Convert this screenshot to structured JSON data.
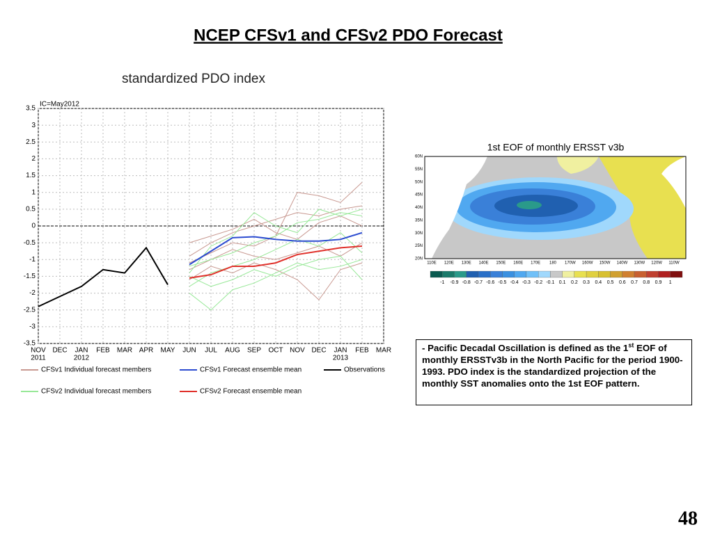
{
  "slide": {
    "title": "NCEP CFSv1 and CFSv2 PDO Forecast",
    "page_number": "48",
    "note": [
      "- ",
      "Pacific Decadal Oscillation is defined as the 1",
      "st",
      " EOF of monthly ERSSTv3b in the North Pacific for the period 1900-1993. PDO index is the standardized projection of the monthly SST anomalies onto  the 1st EOF pattern."
    ]
  },
  "chart_data": {
    "type": "line",
    "title": "standardized PDO index",
    "annotation": "IC=May2012",
    "categories": [
      "NOV",
      "DEC",
      "JAN",
      "FEB",
      "MAR",
      "APR",
      "MAY",
      "JUN",
      "JUL",
      "AUG",
      "SEP",
      "OCT",
      "NOV",
      "DEC",
      "JAN",
      "FEB",
      "MAR"
    ],
    "year_labels": [
      "2011",
      null,
      "2012",
      null,
      null,
      null,
      null,
      null,
      null,
      null,
      null,
      null,
      null,
      null,
      "2013",
      null,
      null
    ],
    "ylim": [
      -3.5,
      3.5
    ],
    "yticks": [
      -3.5,
      -3,
      -2.5,
      -2,
      -1.5,
      -1,
      -0.5,
      0,
      0.5,
      1,
      1.5,
      2,
      2.5,
      3,
      3.5
    ],
    "grid": true,
    "reference_line": 0,
    "series": [
      {
        "name": "CFSv1 Individual forecast members",
        "color": "#c89890",
        "members": [
          [
            null,
            null,
            null,
            null,
            null,
            null,
            null,
            -0.9,
            -0.5,
            -0.2,
            0,
            0.2,
            0.4,
            0.3,
            0.5,
            0.6,
            null
          ],
          [
            null,
            null,
            null,
            null,
            null,
            null,
            null,
            -1.1,
            -0.8,
            -0.5,
            -0.6,
            -0.3,
            1.0,
            0.9,
            0.7,
            1.3,
            null
          ],
          [
            null,
            null,
            null,
            null,
            null,
            null,
            null,
            -1.3,
            -1.0,
            -0.7,
            -0.9,
            -1.0,
            -0.8,
            -0.6,
            -0.9,
            -0.5,
            null
          ],
          [
            null,
            null,
            null,
            null,
            null,
            null,
            null,
            -0.5,
            -0.3,
            -0.1,
            0.2,
            -0.2,
            -0.4,
            0.1,
            0.3,
            0.0,
            null
          ],
          [
            null,
            null,
            null,
            null,
            null,
            null,
            null,
            -1.6,
            -1.2,
            -1.4,
            -1.1,
            -1.3,
            -1.6,
            -2.2,
            -1.3,
            -1.1,
            null
          ]
        ]
      },
      {
        "name": "CFSv1 Forecast ensemble mean",
        "color": "#2b4bd0",
        "values": [
          null,
          null,
          null,
          null,
          null,
          null,
          null,
          -1.15,
          -0.75,
          -0.35,
          -0.32,
          -0.4,
          -0.45,
          -0.45,
          -0.4,
          -0.2,
          null
        ]
      },
      {
        "name": "Observations",
        "color": "#000000",
        "values": [
          -2.4,
          -2.1,
          -1.8,
          -1.3,
          -1.4,
          -0.65,
          -1.75,
          null,
          null,
          null,
          null,
          null,
          null,
          null,
          null,
          null,
          null
        ]
      },
      {
        "name": "CFSv2 Individual forecast members",
        "color": "#98e898",
        "members": [
          [
            null,
            null,
            null,
            null,
            null,
            null,
            null,
            -1.5,
            -1.8,
            -1.6,
            -1.3,
            -1.5,
            -1.2,
            -1.0,
            -0.9,
            -1.6,
            null
          ],
          [
            null,
            null,
            null,
            null,
            null,
            null,
            null,
            -2.0,
            -2.5,
            -1.9,
            -1.7,
            -1.4,
            -1.1,
            -1.3,
            -1.2,
            -1.0,
            null
          ],
          [
            null,
            null,
            null,
            null,
            null,
            null,
            null,
            -1.2,
            -1.0,
            -0.8,
            -0.5,
            -0.3,
            0.1,
            0.2,
            0.4,
            0.3,
            null
          ],
          [
            null,
            null,
            null,
            null,
            null,
            null,
            null,
            -1.8,
            -1.4,
            -1.2,
            -1.0,
            -0.7,
            -0.4,
            -0.6,
            -0.2,
            -0.8,
            null
          ],
          [
            null,
            null,
            null,
            null,
            null,
            null,
            null,
            -1.4,
            -0.6,
            -0.3,
            0.4,
            0.0,
            -0.2,
            0.5,
            0.3,
            0.5,
            null
          ]
        ]
      },
      {
        "name": "CFSv2 Forecast ensemble mean",
        "color": "#e0302a",
        "values": [
          null,
          null,
          null,
          null,
          null,
          null,
          null,
          -1.55,
          -1.45,
          -1.2,
          -1.2,
          -1.1,
          -0.85,
          -0.75,
          -0.65,
          -0.6,
          null
        ]
      }
    ]
  },
  "map": {
    "title": "1st EOF of monthly ERSST v3b",
    "lat_labels": [
      "60N",
      "55N",
      "50N",
      "45N",
      "40N",
      "35N",
      "30N",
      "25N",
      "20N"
    ],
    "lon_labels": [
      "110E",
      "120E",
      "130E",
      "140E",
      "150E",
      "160E",
      "170E",
      "180",
      "170W",
      "160W",
      "150W",
      "140W",
      "130W",
      "120W",
      "110W"
    ],
    "colorbar_labels": [
      "-1",
      "-0.9",
      "-0.8",
      "-0.7",
      "-0.6",
      "-0.5",
      "-0.4",
      "-0.3",
      "-0.2",
      "-0.1",
      "0.1",
      "0.2",
      "0.3",
      "0.4",
      "0.5",
      "0.6",
      "0.7",
      "0.8",
      "0.9",
      "1"
    ],
    "colorbar_colors": [
      "#0a5a50",
      "#1a7a6a",
      "#2a9a8a",
      "#2060b0",
      "#2a70c8",
      "#3a80d8",
      "#3a90e0",
      "#50a8f0",
      "#70c0f8",
      "#a0d8fc",
      "#c8c8c8",
      "#f0f0a0",
      "#e8e050",
      "#e0d040",
      "#d8c030",
      "#d0a030",
      "#d08030",
      "#c86030",
      "#c04030",
      "#b02020",
      "#801010"
    ]
  }
}
